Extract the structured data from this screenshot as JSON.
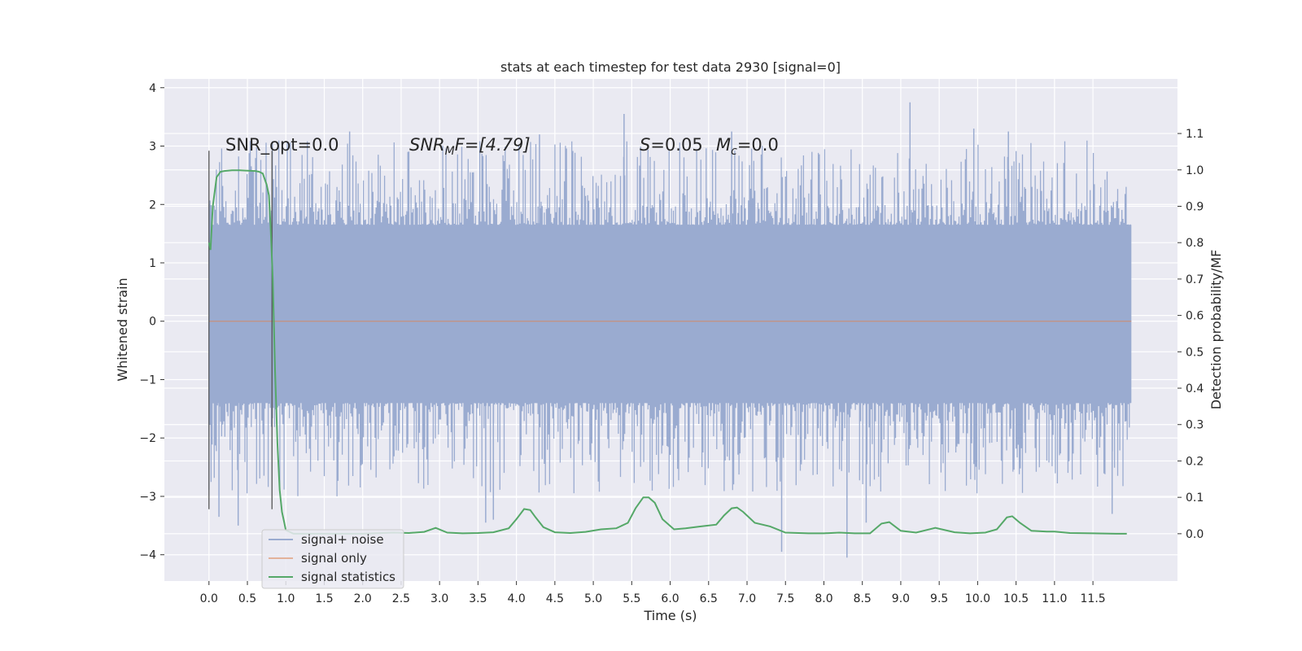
{
  "chart_data": {
    "type": "line",
    "title": "stats at each timestep for test data 2930 [signal=0]",
    "xlabel": "Time (s)",
    "ylabel": "Whitened strain",
    "y2label": "Detection probability/MF",
    "xlim": [
      -0.58,
      12.6
    ],
    "ylim": [
      -4.45,
      4.15
    ],
    "y2lim": [
      -0.13,
      1.25
    ],
    "xticks": [
      0.0,
      0.5,
      1.0,
      1.5,
      2.0,
      2.5,
      3.0,
      3.5,
      4.0,
      4.5,
      5.0,
      5.5,
      6.0,
      6.5,
      7.0,
      7.5,
      8.0,
      8.5,
      9.0,
      9.5,
      10.0,
      10.5,
      11.0,
      11.5
    ],
    "xtick_labels": [
      "0.0",
      "0.5",
      "1.0",
      "1.5",
      "2.0",
      "2.5",
      "3.0",
      "3.5",
      "4.0",
      "4.5",
      "5.0",
      "5.5",
      "6.0",
      "6.5",
      "7.0",
      "7.5",
      "8.0",
      "8.5",
      "9.0",
      "9.5",
      "10.0",
      "10.5",
      "11.0",
      "11.5"
    ],
    "yticks": [
      -4,
      -3,
      -2,
      -1,
      0,
      1,
      2,
      3,
      4
    ],
    "ytick_labels": [
      "−4",
      "−3",
      "−2",
      "−1",
      "0",
      "1",
      "2",
      "3",
      "4"
    ],
    "y2ticks": [
      0.0,
      0.1,
      0.2,
      0.3,
      0.4,
      0.5,
      0.6,
      0.7,
      0.8,
      0.9,
      1.0,
      1.1
    ],
    "y2tick_labels": [
      "0.0",
      "0.1",
      "0.2",
      "0.3",
      "0.4",
      "0.5",
      "0.6",
      "0.7",
      "0.8",
      "0.9",
      "1.0",
      "1.1"
    ],
    "grid": true,
    "legend_position": "lower-left",
    "noise_band": {
      "x_range": [
        0.0,
        12.0
      ],
      "core_range": [
        -1.4,
        1.65
      ],
      "extreme_range": [
        -4.1,
        3.8
      ]
    },
    "noise_spikes": [
      {
        "x": 0.38,
        "y": -3.5
      },
      {
        "x": 0.13,
        "y": -3.35
      },
      {
        "x": 1.83,
        "y": 3.25
      },
      {
        "x": 3.6,
        "y": -3.45
      },
      {
        "x": 3.7,
        "y": -3.4
      },
      {
        "x": 5.4,
        "y": 3.55
      },
      {
        "x": 7.45,
        "y": -3.95
      },
      {
        "x": 8.3,
        "y": -4.05
      },
      {
        "x": 8.55,
        "y": -3.45
      },
      {
        "x": 9.12,
        "y": 3.75
      },
      {
        "x": 9.95,
        "y": 3.3
      },
      {
        "x": 11.75,
        "y": -3.3
      },
      {
        "x": 10.4,
        "y": 3.25
      },
      {
        "x": 4.3,
        "y": 3.2
      },
      {
        "x": 6.8,
        "y": 3.25
      }
    ],
    "signal_only": {
      "x": [
        0.0,
        12.0
      ],
      "y": [
        0.0,
        0.0
      ]
    },
    "signal_statistics": {
      "x": [
        0.0,
        0.02,
        0.05,
        0.1,
        0.15,
        0.2,
        0.3,
        0.4,
        0.5,
        0.6,
        0.65,
        0.7,
        0.75,
        0.78,
        0.8,
        0.83,
        0.86,
        0.89,
        0.92,
        0.95,
        0.98,
        1.0,
        1.1,
        1.5,
        2.0,
        2.4,
        2.6,
        2.8,
        2.95,
        3.1,
        3.3,
        3.5,
        3.7,
        3.9,
        4.0,
        4.1,
        4.18,
        4.25,
        4.35,
        4.5,
        4.7,
        4.9,
        5.1,
        5.3,
        5.45,
        5.55,
        5.65,
        5.72,
        5.8,
        5.9,
        6.05,
        6.2,
        6.4,
        6.6,
        6.7,
        6.8,
        6.87,
        6.95,
        7.1,
        7.3,
        7.5,
        7.8,
        8.0,
        8.2,
        8.4,
        8.6,
        8.75,
        8.85,
        9.0,
        9.2,
        9.45,
        9.7,
        9.9,
        10.1,
        10.25,
        10.38,
        10.45,
        10.55,
        10.7,
        10.9,
        11.0,
        11.2,
        11.5,
        11.8,
        11.94
      ],
      "y": [
        0.8,
        0.78,
        0.9,
        0.98,
        0.995,
        0.997,
        0.999,
        0.999,
        0.998,
        0.997,
        0.995,
        0.99,
        0.96,
        0.93,
        0.85,
        0.7,
        0.45,
        0.25,
        0.12,
        0.06,
        0.03,
        0.01,
        0.0,
        0.0,
        0.0,
        0.003,
        0.002,
        0.005,
        0.016,
        0.003,
        0.001,
        0.002,
        0.004,
        0.015,
        0.04,
        0.068,
        0.065,
        0.045,
        0.018,
        0.004,
        0.002,
        0.005,
        0.012,
        0.015,
        0.03,
        0.07,
        0.1,
        0.1,
        0.085,
        0.04,
        0.012,
        0.015,
        0.02,
        0.025,
        0.05,
        0.07,
        0.072,
        0.06,
        0.03,
        0.02,
        0.003,
        0.001,
        0.001,
        0.003,
        0.001,
        0.001,
        0.028,
        0.032,
        0.008,
        0.003,
        0.016,
        0.004,
        0.001,
        0.003,
        0.012,
        0.045,
        0.048,
        0.03,
        0.008,
        0.006,
        0.006,
        0.002,
        0.001,
        0.0,
        0.0
      ]
    },
    "vertical_markers": [
      0.0,
      0.82
    ],
    "vertical_marker_range": [
      -3.22,
      2.92
    ],
    "annotations": [
      {
        "text": "SNR_opt=0.0",
        "x": 0.2,
        "y": 3.0
      },
      {
        "text": "SNR_MF=[4.79]",
        "x": 2.6,
        "y": 3.0
      },
      {
        "text": "S=0.05",
        "x": 5.6,
        "y": 3.0
      },
      {
        "text": "M_c=0.0",
        "x": 6.6,
        "y": 3.0
      }
    ],
    "series": [
      {
        "name": "signal+ noise",
        "color": "#9aabd0"
      },
      {
        "name": "signal only",
        "color": "#dd8452"
      },
      {
        "name": "signal statistics",
        "color": "#55a868"
      }
    ]
  },
  "annotation_parts": {
    "snr_opt": "SNR_opt=0.0",
    "snr_mf_base": "SNR",
    "snr_mf_sub": "M",
    "snr_mf_tail": "F=[4.79]",
    "s_base": "S",
    "s_tail": "=0.05",
    "mc_base": "M",
    "mc_sub": "c",
    "mc_tail": "=0.0"
  }
}
